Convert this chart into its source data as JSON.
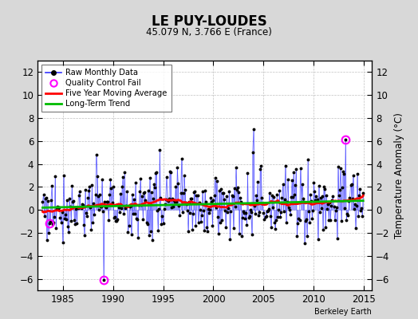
{
  "title": "LE PUY-LOUDES",
  "subtitle": "45.079 N, 3.766 E (France)",
  "ylabel": "Temperature Anomaly (°C)",
  "credit": "Berkeley Earth",
  "xlim": [
    1982.5,
    2015.8
  ],
  "ylim": [
    -7,
    13
  ],
  "yticks": [
    -6,
    -4,
    -2,
    0,
    2,
    4,
    6,
    8,
    10,
    12
  ],
  "xticks": [
    1985,
    1990,
    1995,
    2000,
    2005,
    2010,
    2015
  ],
  "bg_color": "#d8d8d8",
  "plot_bg_color": "#ffffff",
  "raw_line_color": "#3333ff",
  "raw_marker_color": "#000000",
  "qc_fail_color": "#ff00ff",
  "moving_avg_color": "#ff0000",
  "trend_color": "#00bb00",
  "start_year": 1983,
  "end_year": 2014,
  "n_months": 384,
  "seed": 77,
  "data_mean": 0.55,
  "data_std": 1.5
}
